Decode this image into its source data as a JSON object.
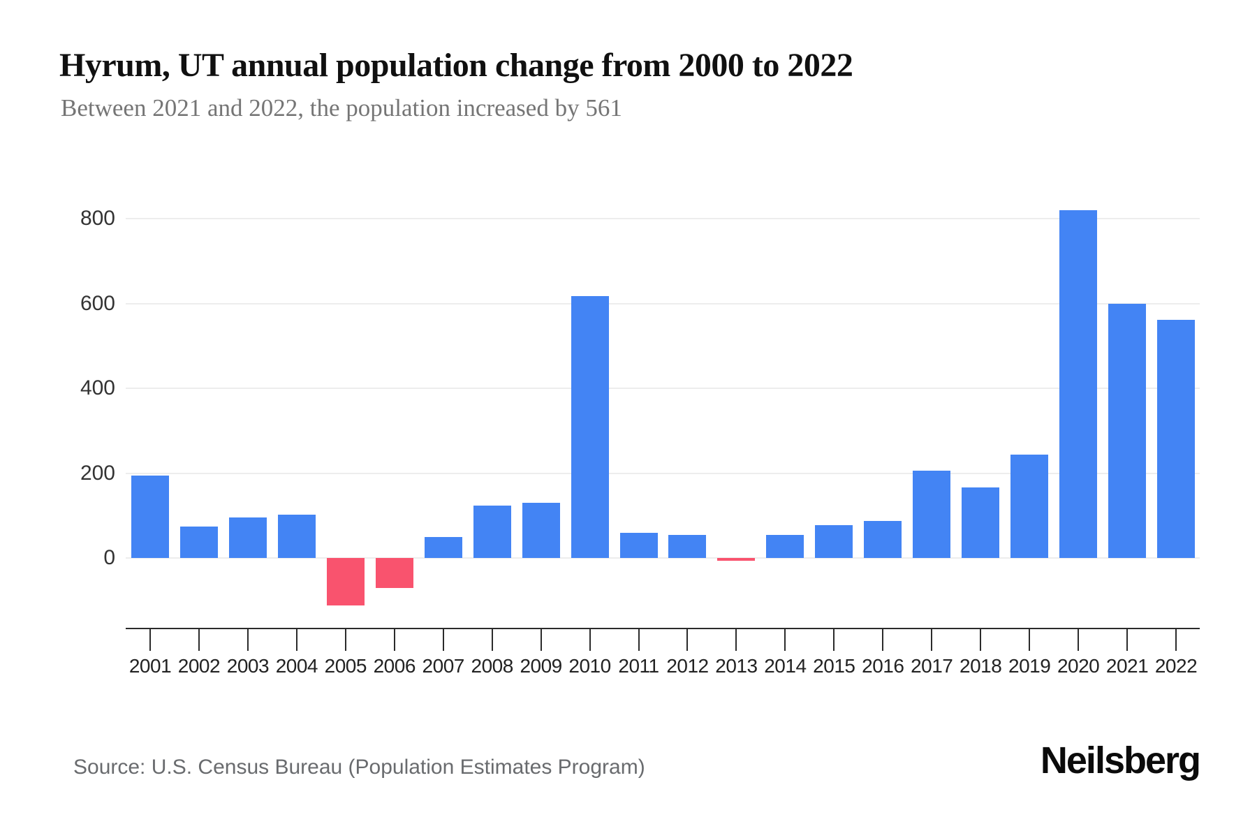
{
  "header": {
    "title": "Hyrum, UT annual population change from 2000 to 2022",
    "subtitle": "Between 2021 and 2022, the population increased by 561"
  },
  "chart_data": {
    "type": "bar",
    "title": "Hyrum, UT annual population change from 2000 to 2022",
    "subtitle": "Between 2021 and 2022, the population increased by 561",
    "categories": [
      "2001",
      "2002",
      "2003",
      "2004",
      "2005",
      "2006",
      "2007",
      "2008",
      "2009",
      "2010",
      "2011",
      "2012",
      "2013",
      "2014",
      "2015",
      "2016",
      "2017",
      "2018",
      "2019",
      "2020",
      "2021",
      "2022"
    ],
    "values": [
      195,
      74,
      96,
      102,
      -112,
      -71,
      49,
      124,
      130,
      618,
      60,
      54,
      -6,
      55,
      77,
      87,
      205,
      167,
      244,
      820,
      600,
      561
    ],
    "xlabel": "",
    "ylabel": "",
    "yticks": [
      0,
      200,
      400,
      600,
      800
    ],
    "ylim": [
      -170,
      830
    ],
    "grid": true,
    "legend": false,
    "colors": {
      "positive_bar": "#4384F4",
      "negative_bar": "#F9536E",
      "gridline": "#EDEDED",
      "axis": "#2B2B2B",
      "y_tick_label": "#333333",
      "x_tick_label": "#222222"
    }
  },
  "footer": {
    "source": "Source: U.S. Census Bureau (Population Estimates Program)",
    "logo_text": "Neilsberg"
  }
}
